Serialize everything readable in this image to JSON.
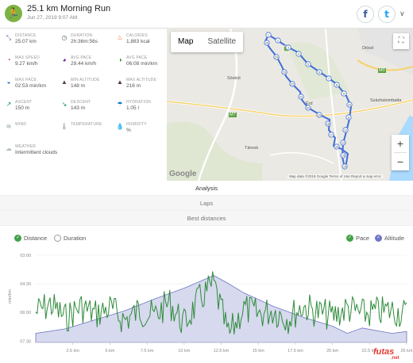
{
  "header": {
    "title": "25.1 km Morning Run",
    "date": "Jun 27, 2019 9:07 AM",
    "facebook": "f",
    "twitter": "t",
    "chevron": "∨"
  },
  "stats": [
    {
      "label": "DISTANCE",
      "value": "25.07 km",
      "icon": "ruler-icon",
      "glyph": "⤡",
      "color": "#6d4c8d"
    },
    {
      "label": "DURATION",
      "value": "2h:36m:56s",
      "icon": "stopwatch-icon",
      "glyph": "◷",
      "color": "#546e7a"
    },
    {
      "label": "CALORIES",
      "value": "1,883 kcal",
      "icon": "flame-icon",
      "glyph": "♨",
      "color": "#e65100"
    },
    {
      "label": "MAX SPEED",
      "value": "9.27 km/h",
      "icon": "speed-icon",
      "glyph": "◔",
      "color": "#c62828"
    },
    {
      "label": "AVG PACE",
      "value": "29.44 km/h",
      "icon": "gauge-icon",
      "glyph": "◕",
      "color": "#6a1b9a"
    },
    {
      "label": "AVG PACE",
      "value": "06:08 min/km",
      "icon": "pace-icon",
      "glyph": "◑",
      "color": "#2e7d32"
    },
    {
      "label": "MAX PACE",
      "value": "02:53 min/km",
      "icon": "max-pace-icon",
      "glyph": "◒",
      "color": "#1565c0"
    },
    {
      "label": "MIN ALTITUDE",
      "value": "148 m",
      "icon": "min-altitude-icon",
      "glyph": "▲",
      "color": "#5d4037"
    },
    {
      "label": "MAX ALTITUDE",
      "value": "216 m",
      "icon": "max-altitude-icon",
      "glyph": "▲",
      "color": "#4e342e"
    },
    {
      "label": "ASCENT",
      "value": "150 m",
      "icon": "ascent-icon",
      "glyph": "↗",
      "color": "#00897b"
    },
    {
      "label": "DESCENT",
      "value": "143 m",
      "icon": "descent-icon",
      "glyph": "↘",
      "color": "#00897b"
    },
    {
      "label": "HYDRATION",
      "value": "1.05 l",
      "icon": "hydration-icon",
      "glyph": "☂",
      "color": "#0277bd"
    },
    {
      "label": "WIND",
      "value": "",
      "icon": "wind-icon",
      "glyph": "≋",
      "color": "#90a4ae"
    },
    {
      "label": "TEMPERATURE",
      "value": "",
      "icon": "thermometer-icon",
      "glyph": "🌡",
      "color": "#90a4ae"
    },
    {
      "label": "HUMIDITY",
      "value": "%",
      "icon": "humidity-icon",
      "glyph": "💧",
      "color": "#90a4ae"
    },
    {
      "label": "WEATHER",
      "value": "Intermittent clouds",
      "icon": "cloud-icon",
      "glyph": "☁",
      "color": "#b0bec5"
    }
  ],
  "map": {
    "map_label": "Map",
    "satellite_label": "Satellite",
    "zoom_in": "+",
    "zoom_out": "−",
    "fullscreen": "⛶",
    "places": [
      "Sóskút",
      "Diósd",
      "Tárnok",
      "Érd",
      "Százhalombatta"
    ],
    "roads": [
      "M1",
      "M6",
      "M0",
      "M7"
    ],
    "google": "Google",
    "attribution": "Map data ©2019 Google   Terms of Use   Report a map error",
    "route_color": "#3f6fd6",
    "markers": [
      "1",
      "2",
      "3",
      "4",
      "5",
      "6",
      "7",
      "8",
      "9",
      "10",
      "11",
      "12",
      "13",
      "14",
      "15",
      "16",
      "17",
      "18",
      "19",
      "20",
      "21",
      "22",
      "23",
      "24",
      "25"
    ]
  },
  "tabs": {
    "analysis": "Analysis",
    "laps": "Laps",
    "best_distances": "Best distances"
  },
  "chart_legend": {
    "distance": "Distance",
    "duration": "Duration",
    "pace": "Pace",
    "altitude": "Altitude",
    "check": "✓"
  },
  "branding": {
    "name": "futas",
    "suffix": ".net"
  },
  "chart_data": {
    "type": "line",
    "xlabel": "",
    "ylabel": "min/km",
    "x_unit": "km",
    "xticks": [
      "2.5 km",
      "5 km",
      "7.5 km",
      "10 km",
      "12.5 km",
      "15 km",
      "17.5 km",
      "20 km",
      "22.5 km",
      "25 km"
    ],
    "yticks": [
      "03:00",
      "04:30",
      "06:00",
      "07:30"
    ],
    "series": [
      {
        "name": "Pace",
        "color": "#2e8b3a",
        "unit": "min/km",
        "x": [
          0,
          1,
          2,
          3,
          4,
          5,
          6,
          7,
          8,
          9,
          10,
          11,
          12,
          13,
          14,
          15,
          16,
          17,
          18,
          19,
          20,
          21,
          22,
          23,
          24,
          25
        ],
        "values": [
          6.0,
          5.6,
          6.3,
          5.7,
          6.1,
          5.8,
          6.4,
          5.9,
          6.2,
          5.5,
          6.6,
          5.4,
          4.6,
          7.2,
          5.8,
          6.1,
          5.9,
          6.3,
          5.7,
          6.0,
          6.2,
          5.8,
          6.1,
          6.0,
          5.9,
          6.1
        ]
      },
      {
        "name": "Altitude",
        "color": "#c5c8e6",
        "unit": "m",
        "x": [
          0,
          2,
          4,
          6,
          8,
          10,
          11,
          12,
          13,
          14,
          16,
          18,
          20,
          21,
          22,
          24,
          25
        ],
        "values": [
          150,
          155,
          165,
          175,
          188,
          200,
          207,
          214,
          205,
          195,
          180,
          168,
          158,
          150,
          156,
          150,
          152
        ]
      }
    ]
  }
}
